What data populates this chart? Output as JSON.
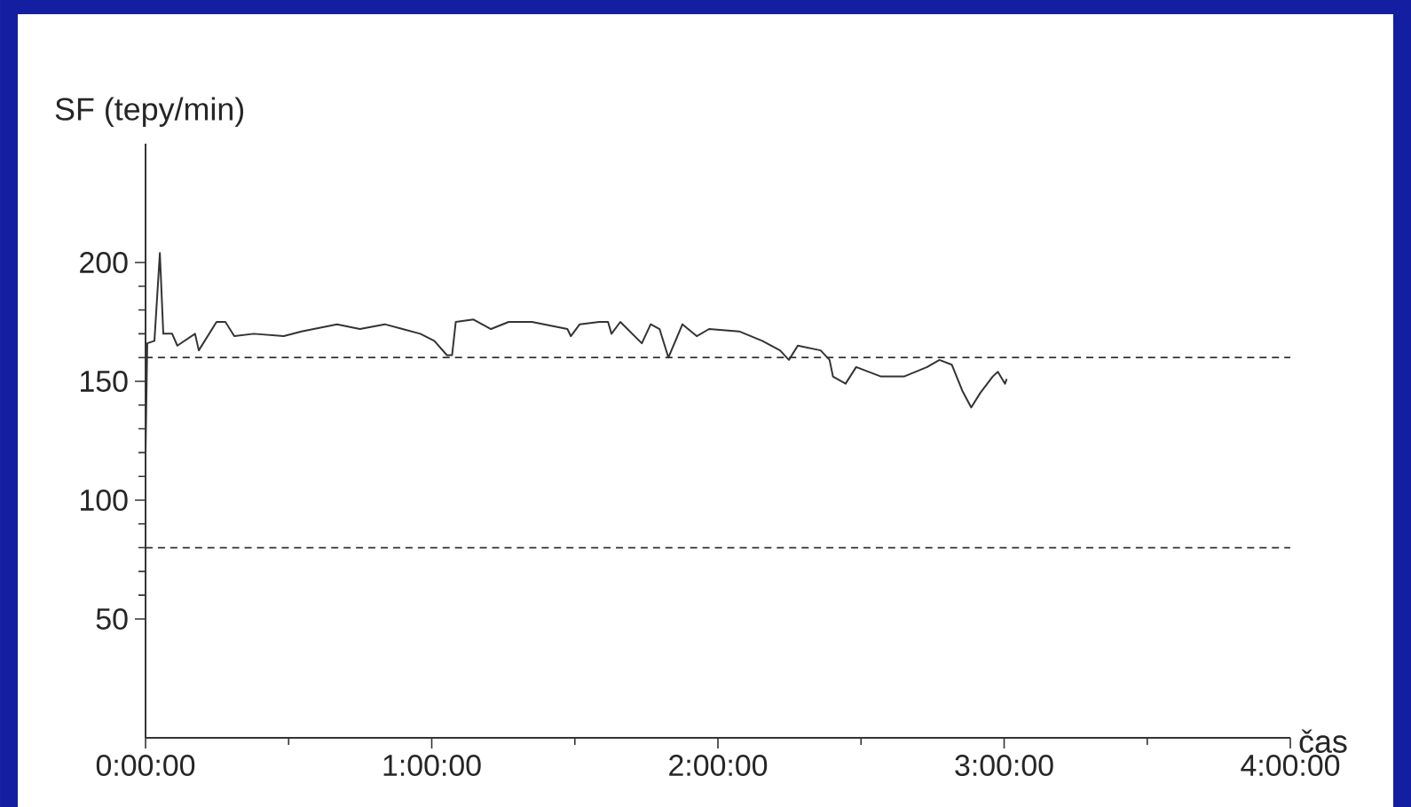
{
  "chart_data": {
    "type": "line",
    "xlabel": "čas",
    "ylabel": "SF (tepy/min)",
    "x": [
      0,
      0.006,
      0.031,
      0.05,
      0.062,
      0.093,
      0.111,
      0.173,
      0.186,
      0.248,
      0.279,
      0.31,
      0.378,
      0.483,
      0.545,
      0.669,
      0.749,
      0.836,
      0.898,
      0.96,
      1.009,
      1.053,
      1.071,
      1.084,
      1.146,
      1.207,
      1.269,
      1.35,
      1.474,
      1.486,
      1.517,
      1.585,
      1.616,
      1.628,
      1.659,
      1.734,
      1.765,
      1.796,
      1.827,
      1.876,
      1.926,
      1.969,
      2.074,
      2.155,
      2.217,
      2.248,
      2.279,
      2.359,
      2.39,
      2.402,
      2.446,
      2.483,
      2.57,
      2.65,
      2.731,
      2.774,
      2.817,
      2.854,
      2.885,
      2.916,
      2.96,
      2.978,
      3.003,
      3.009
    ],
    "series": [
      {
        "color": "#333333",
        "values": [
          120,
          166,
          167,
          204,
          170,
          170,
          165,
          170,
          163,
          175,
          175,
          169,
          170,
          169,
          171,
          174,
          172,
          174,
          172,
          170,
          167,
          161,
          161,
          175,
          176,
          172,
          175,
          175,
          172,
          169,
          174,
          175,
          175,
          170,
          175,
          166,
          174,
          172,
          160,
          174,
          169,
          172,
          171,
          167,
          163,
          159,
          165,
          163,
          159,
          152,
          149,
          156,
          152,
          152,
          156,
          159,
          157,
          146,
          139,
          145,
          152,
          154,
          149,
          151
        ]
      }
    ],
    "xlim": [
      0,
      4
    ],
    "ylim": [
      0,
      250
    ],
    "xticks": [
      {
        "value": 0,
        "label": "0:00:00"
      },
      {
        "value": 1,
        "label": "1:00:00"
      },
      {
        "value": 2,
        "label": "2:00:00"
      },
      {
        "value": 3,
        "label": "3:00:00"
      },
      {
        "value": 4,
        "label": "4:00:00"
      }
    ],
    "yticks": [
      50,
      100,
      150,
      200
    ],
    "ref_lines": [
      {
        "axis": "y",
        "value": 160,
        "line_style": "dashed"
      },
      {
        "axis": "y",
        "value": 80,
        "line_style": "dashed"
      }
    ],
    "grid": false
  }
}
